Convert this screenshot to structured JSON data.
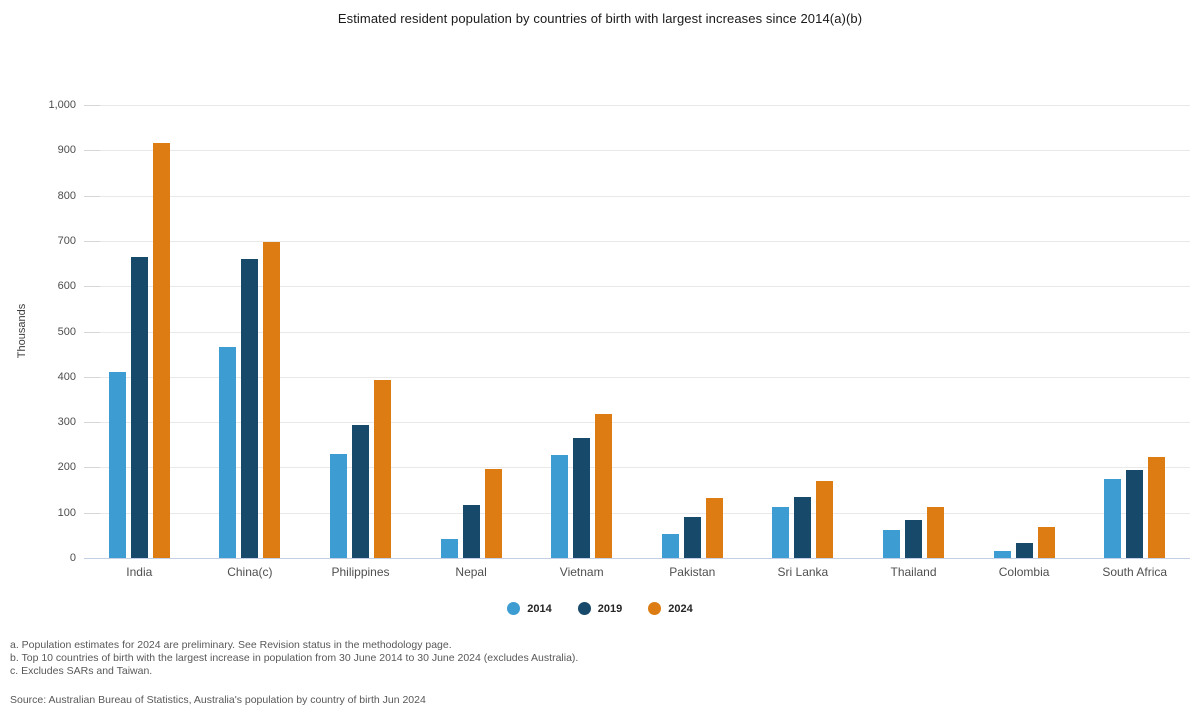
{
  "title": "Estimated resident population by countries of birth with largest increases since 2014(a)(b)",
  "chart_data": {
    "type": "bar",
    "title": "Estimated resident population by countries of birth with largest increases since 2014(a)(b)",
    "xlabel": "",
    "ylabel": "Thousands",
    "ylim": [
      0,
      1000
    ],
    "ytick_interval": 100,
    "ytick_labels": [
      "0",
      "100",
      "200",
      "300",
      "400",
      "500",
      "600",
      "700",
      "800",
      "900",
      "1,000"
    ],
    "grid": true,
    "legend_position": "bottom",
    "categories": [
      "India",
      "China(c)",
      "Philippines",
      "Nepal",
      "Vietnam",
      "Pakistan",
      "Sri Lanka",
      "Thailand",
      "Colombia",
      "South Africa"
    ],
    "series": [
      {
        "name": "2014",
        "color": "#3d9dd3",
        "values": [
          410,
          465,
          230,
          42,
          228,
          53,
          112,
          61,
          15,
          175
        ]
      },
      {
        "name": "2019",
        "color": "#17496b",
        "values": [
          664,
          660,
          293,
          118,
          265,
          90,
          135,
          84,
          34,
          194
        ]
      },
      {
        "name": "2024",
        "color": "#dd7c13",
        "values": [
          916,
          697,
          394,
          196,
          317,
          133,
          170,
          113,
          69,
          223
        ]
      }
    ]
  },
  "footnotes": [
    "a. Population estimates for 2024 are preliminary. See Revision status in the methodology page.",
    "b. Top 10 countries of birth with the largest increase in population from 30 June 2014 to 30 June 2024 (excludes Australia).",
    "c. Excludes SARs and Taiwan."
  ],
  "source": "Source: Australian Bureau of Statistics, Australia's population by country of birth Jun 2024",
  "colors": {
    "gridline": "#e9e9e9",
    "tick": "#d6d6d6",
    "baseline": "#c3cfe4",
    "title_text": "#1a1a1a",
    "axis_text": "#4d4d4d",
    "footnote_text": "#585858"
  }
}
